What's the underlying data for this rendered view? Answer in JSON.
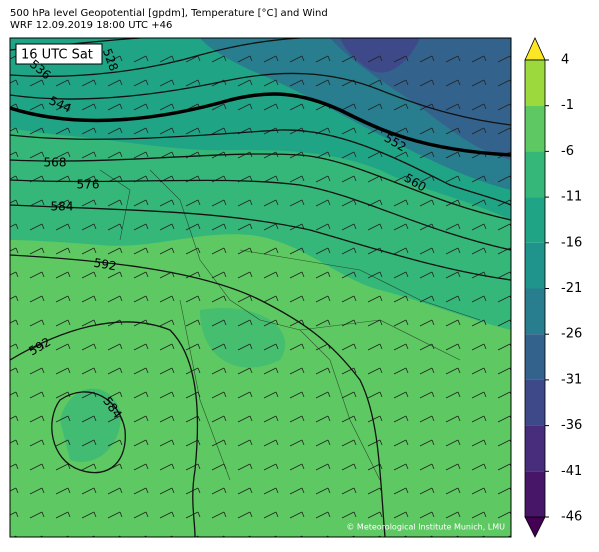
{
  "header": {
    "title_line1": "500 hPa level Geopotential [gpdm], Temperature [°C] and Wind",
    "title_line2": "WRF 12.09.2019 18:00 UTC +46"
  },
  "map": {
    "time_label": "16 UTC Sat",
    "contour_labels": [
      "536",
      "528",
      "544",
      "552",
      "560",
      "568",
      "576",
      "584",
      "592",
      "592",
      "584"
    ],
    "credit": "© Meteorological Institute Munich, LMU"
  },
  "colorbar": {
    "ticks": [
      4,
      -1,
      -6,
      -11,
      -16,
      -21,
      -26,
      -31,
      -36,
      -41,
      -46
    ],
    "colors": [
      "#e5e419",
      "#9bd93c",
      "#5ec962",
      "#35b779",
      "#20a486",
      "#1f948c",
      "#287d8e",
      "#33638d",
      "#3e4989",
      "#472d7b",
      "#481668"
    ],
    "over_color": "#fde725",
    "under_color": "#440154"
  }
}
